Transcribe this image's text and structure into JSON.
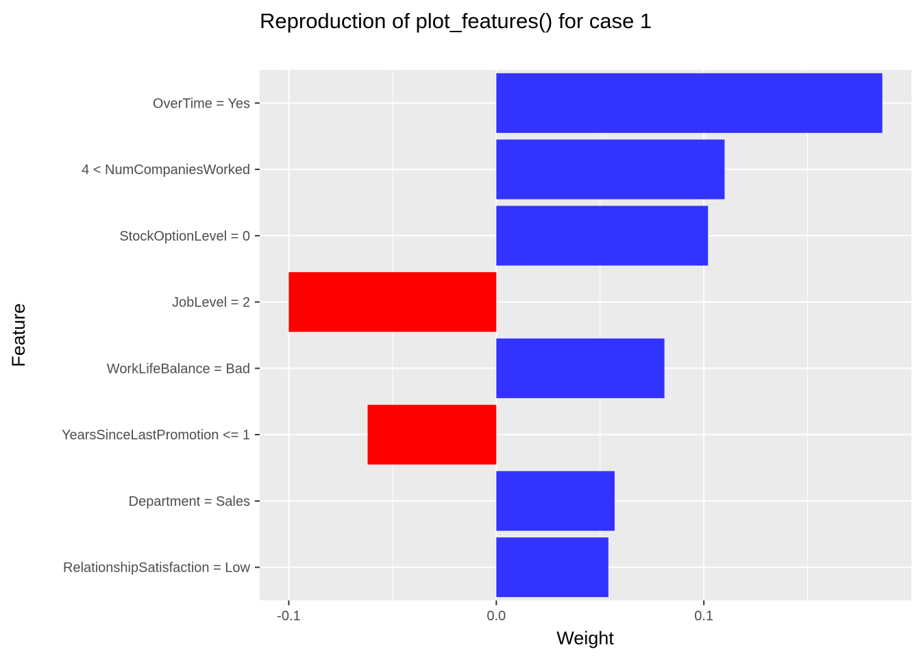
{
  "chart_data": {
    "type": "bar",
    "orientation": "horizontal",
    "title": "Reproduction of plot_features() for case 1",
    "xlabel": "Weight",
    "ylabel": "Feature",
    "categories": [
      "OverTime = Yes",
      "4 < NumCompaniesWorked",
      "StockOptionLevel = 0",
      "JobLevel = 2",
      "WorkLifeBalance = Bad",
      "YearsSinceLastPromotion <= 1",
      "Department = Sales",
      "RelationshipSatisfaction = Low"
    ],
    "values": [
      0.186,
      0.11,
      0.102,
      -0.1,
      0.081,
      -0.062,
      0.057,
      0.054
    ],
    "xlim": [
      -0.114,
      0.2
    ],
    "xticks": [
      -0.1,
      0.0,
      0.1
    ],
    "xtick_labels": [
      "-0.1",
      "0.0",
      "0.1"
    ],
    "grid": true,
    "colors": {
      "positive": "#3333FF",
      "negative": "#FF0000",
      "panel_background": "#EBEBEB",
      "grid": "#FFFFFF"
    }
  }
}
